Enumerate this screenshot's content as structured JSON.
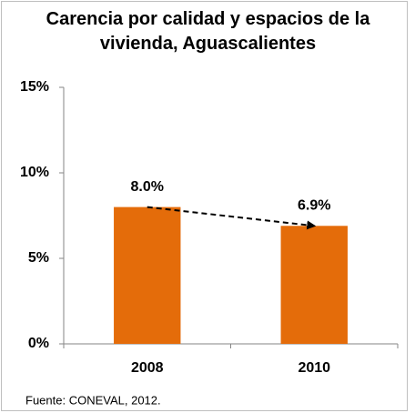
{
  "chart_data": {
    "type": "bar",
    "title": "Carencia por calidad y espacios de la vivienda, Aguascalientes",
    "categories": [
      "2008",
      "2010"
    ],
    "values": [
      8.0,
      6.9
    ],
    "value_labels": [
      "8.0%",
      "6.9%"
    ],
    "color": "#e46c0a",
    "ylim": [
      0,
      15
    ],
    "yticks": [
      {
        "value": 0,
        "label": "0%"
      },
      {
        "value": 5,
        "label": "5%"
      },
      {
        "value": 10,
        "label": "10%"
      },
      {
        "value": 15,
        "label": "15%"
      }
    ],
    "source": "Fuente: CONEVAL, 2012."
  }
}
